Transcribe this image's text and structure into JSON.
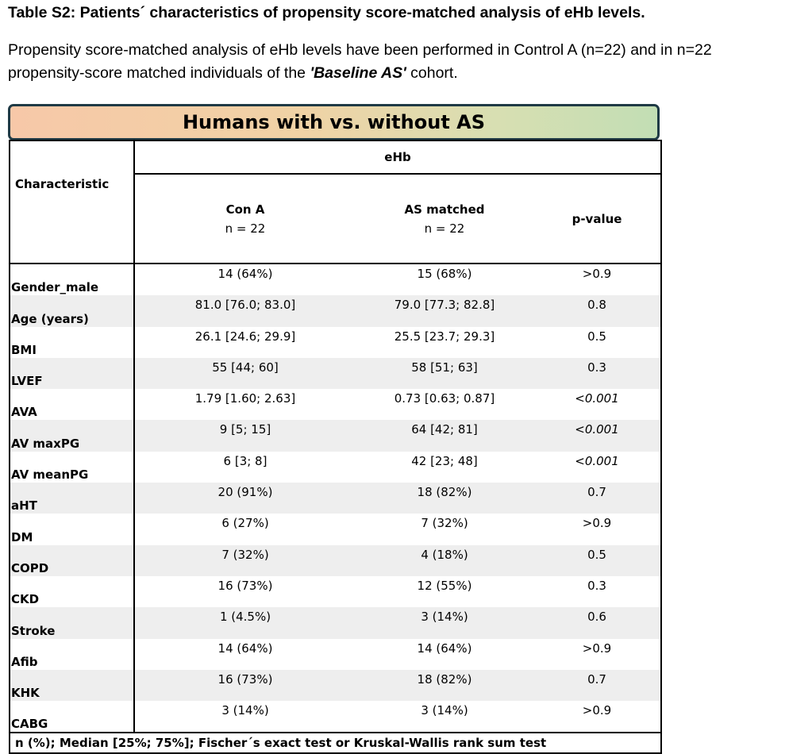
{
  "title": "Table S2: Patients´ characteristics of propensity score-matched analysis of eHb levels.",
  "intro": {
    "before": "Propensity score-matched analysis of eHb levels have been performed in Control A (n=22) and in n=22 propensity-score matched individuals of the ",
    "emphasis": "'Baseline AS'",
    "after": " cohort."
  },
  "banner": "Humans with vs. without AS",
  "table": {
    "group_header": "eHb",
    "char_header": "Characteristic",
    "columns": [
      {
        "label": "Con A",
        "n": "n = 22"
      },
      {
        "label": "AS matched",
        "n": "n = 22"
      },
      {
        "label": "p-value",
        "n": ""
      }
    ],
    "rows": [
      {
        "name": "Gender_male",
        "con_a": "14 (64%)",
        "as_matched": "15 (68%)",
        "p": ">0.9",
        "italic": false
      },
      {
        "name": "Age (years)",
        "con_a": "81.0 [76.0; 83.0]",
        "as_matched": "79.0 [77.3; 82.8]",
        "p": "0.8",
        "italic": false
      },
      {
        "name": "BMI",
        "con_a": "26.1 [24.6; 29.9]",
        "as_matched": "25.5 [23.7; 29.3]",
        "p": "0.5",
        "italic": false
      },
      {
        "name": "LVEF",
        "con_a": "55 [44; 60]",
        "as_matched": "58 [51; 63]",
        "p": "0.3",
        "italic": false
      },
      {
        "name": "AVA",
        "con_a": "1.79 [1.60; 2.63]",
        "as_matched": "0.73 [0.63; 0.87]",
        "p": "<0.001",
        "italic": true
      },
      {
        "name": "AV maxPG",
        "con_a": "9 [5; 15]",
        "as_matched": "64 [42; 81]",
        "p": "<0.001",
        "italic": true
      },
      {
        "name": "AV meanPG",
        "con_a": "6 [3; 8]",
        "as_matched": "42 [23; 48]",
        "p": "<0.001",
        "italic": true
      },
      {
        "name": "aHT",
        "con_a": "20 (91%)",
        "as_matched": "18 (82%)",
        "p": "0.7",
        "italic": false
      },
      {
        "name": "DM",
        "con_a": "6 (27%)",
        "as_matched": "7 (32%)",
        "p": ">0.9",
        "italic": false
      },
      {
        "name": "COPD",
        "con_a": "7 (32%)",
        "as_matched": "4 (18%)",
        "p": "0.5",
        "italic": false
      },
      {
        "name": "CKD",
        "con_a": "16 (73%)",
        "as_matched": "12 (55%)",
        "p": "0.3",
        "italic": false
      },
      {
        "name": "Stroke",
        "con_a": "1 (4.5%)",
        "as_matched": "3 (14%)",
        "p": "0.6",
        "italic": false
      },
      {
        "name": "Afib",
        "con_a": "14 (64%)",
        "as_matched": "14 (64%)",
        "p": ">0.9",
        "italic": false
      },
      {
        "name": "KHK",
        "con_a": "16 (73%)",
        "as_matched": "18 (82%)",
        "p": "0.7",
        "italic": false
      },
      {
        "name": "CABG",
        "con_a": "3 (14%)",
        "as_matched": "3 (14%)",
        "p": ">0.9",
        "italic": false
      }
    ],
    "footnote": "n (%); Median [25%; 75%]; Fischer´s exact test or Kruskal-Wallis rank sum test"
  },
  "colors": {
    "banner_border": "#1f3a45",
    "banner_gradient_start": "#f7c8a8",
    "banner_gradient_end": "#c2deb4",
    "alt_row": "#eeeeee"
  }
}
